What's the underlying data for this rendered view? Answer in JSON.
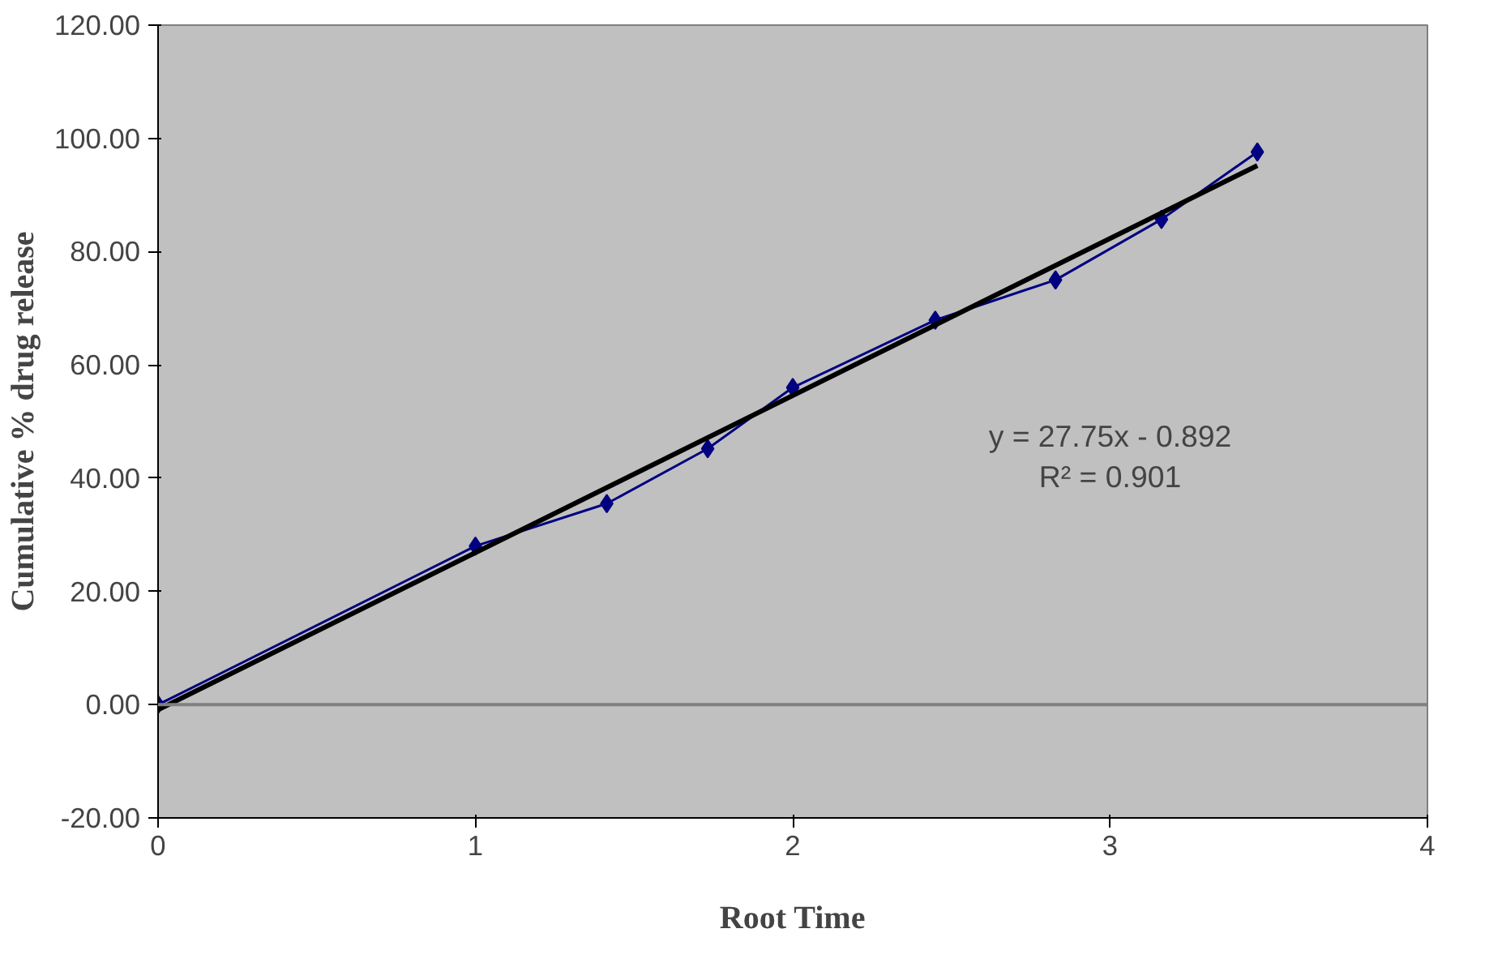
{
  "chart_data": {
    "type": "line",
    "xlabel": "Root Time",
    "ylabel": "Cumulative % drug release",
    "x": [
      0,
      1,
      1.414,
      1.732,
      2,
      2.449,
      2.828,
      3.162,
      3.464
    ],
    "series": [
      {
        "color": "#000080",
        "marker": "diamond",
        "values": [
          0,
          28.0,
          35.5,
          45.2,
          56.0,
          67.9,
          75.0,
          85.7,
          97.6
        ]
      },
      {
        "color": "#000000",
        "marker": "none",
        "x": [
          0,
          3.464
        ],
        "values": [
          -0.9,
          95.2
        ]
      }
    ],
    "annotations": [
      "y = 27.75x - 0.892\nR² = 0.901"
    ],
    "xlim": [
      0,
      4
    ],
    "ylim": [
      -20,
      120
    ],
    "xticks": [
      0,
      1,
      2,
      3,
      4
    ],
    "yticks": [
      {
        "value": -20,
        "label": "-20.00"
      },
      {
        "value": 0,
        "label": "0.00"
      },
      {
        "value": 20,
        "label": "20.00"
      },
      {
        "value": 40,
        "label": "40.00"
      },
      {
        "value": 60,
        "label": "60.00"
      },
      {
        "value": 80,
        "label": "80.00"
      },
      {
        "value": 100,
        "label": "100.00"
      },
      {
        "value": 120,
        "label": "120.00"
      }
    ],
    "ref_lines": [
      {
        "axis": "y",
        "value": 0,
        "color": "#808080"
      }
    ],
    "grid": false
  }
}
